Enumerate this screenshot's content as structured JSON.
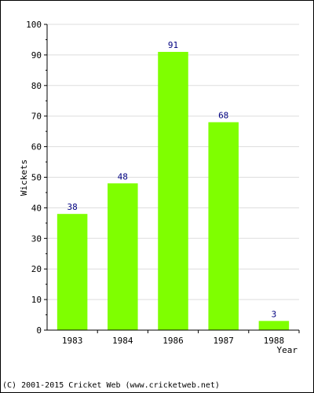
{
  "chart_data": {
    "type": "bar",
    "categories": [
      "1983",
      "1984",
      "1986",
      "1987",
      "1988"
    ],
    "values": [
      38,
      48,
      91,
      68,
      3
    ],
    "ylabel": "Wickets",
    "xlabel": "Year",
    "ylim": [
      0,
      100
    ],
    "yticks": [
      0,
      10,
      20,
      30,
      40,
      50,
      60,
      70,
      80,
      90,
      100
    ],
    "grid": true,
    "bar_color": "#7fff00",
    "data_label_color": "#000080"
  },
  "footer": {
    "copyright": "(C) 2001-2015 Cricket Web (www.cricketweb.net)"
  }
}
